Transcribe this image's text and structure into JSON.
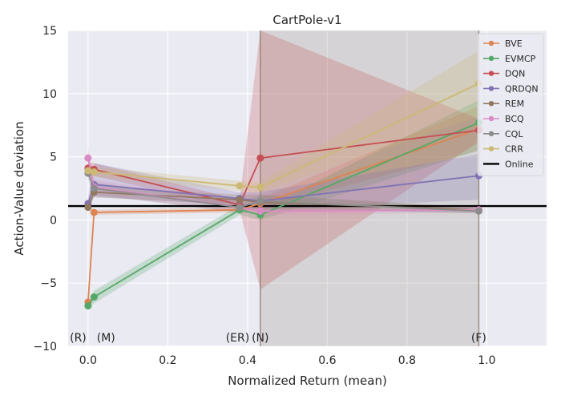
{
  "chart_data": {
    "type": "line",
    "title": "CartPole-v1",
    "xlabel": "Normalized Return (mean)",
    "ylabel": "Action-Value deviation",
    "xlim": [
      -0.05,
      1.15
    ],
    "ylim": [
      -10,
      15
    ],
    "xticks": [
      0.0,
      0.2,
      0.4,
      0.6,
      0.8,
      1.0
    ],
    "xtick_labels": [
      "0.0",
      "0.2",
      "0.4",
      "0.6",
      "0.8",
      "1.0"
    ],
    "yticks": [
      -10,
      -5,
      0,
      5,
      10,
      15
    ],
    "ytick_labels": [
      "−10",
      "−5",
      "0",
      "5",
      "10",
      "15"
    ],
    "grid": true,
    "legend_position": "top-right",
    "annotations": [
      {
        "text": "(R)",
        "x": -0.025
      },
      {
        "text": "(M)",
        "x": 0.045
      },
      {
        "text": "(ER)",
        "x": 0.375
      },
      {
        "text": "(N)",
        "x": 0.432
      },
      {
        "text": "(F)",
        "x": 0.98
      }
    ],
    "vlines": [
      0.432,
      0.98
    ],
    "shaded_span": [
      0.432,
      0.98
    ],
    "reference_line": {
      "name": "Online",
      "y": 1.1,
      "color": "#000000"
    },
    "series": [
      {
        "name": "BVE",
        "color": "#dd8452",
        "x": [
          0.0,
          0.015,
          0.38,
          0.432,
          0.98
        ],
        "y": [
          -6.5,
          0.6,
          0.8,
          1.3,
          7.2
        ],
        "lower": [
          -6.9,
          0.4,
          0.6,
          0.9,
          5.5
        ],
        "upper": [
          -6.1,
          0.8,
          1.0,
          1.7,
          9.0
        ]
      },
      {
        "name": "EVMCP",
        "color": "#55a868",
        "x": [
          0.0,
          0.015,
          0.38,
          0.432,
          0.98
        ],
        "y": [
          -6.8,
          -6.1,
          0.8,
          0.4,
          7.7
        ],
        "lower": [
          -7.1,
          -6.6,
          0.4,
          0.0,
          5.5
        ],
        "upper": [
          -6.5,
          -5.6,
          1.2,
          0.8,
          9.5
        ]
      },
      {
        "name": "DQN",
        "color": "#c44e52",
        "x": [
          0.0,
          0.015,
          0.38,
          0.432,
          0.98
        ],
        "y": [
          4.1,
          4.0,
          1.2,
          4.9,
          7.1
        ],
        "lower": [
          3.6,
          3.5,
          0.8,
          -5.5,
          6.2
        ],
        "upper": [
          4.6,
          4.5,
          1.6,
          15.0,
          8.0
        ]
      },
      {
        "name": "QRDQN",
        "color": "#8172b3",
        "x": [
          0.0,
          0.015,
          0.38,
          0.432,
          0.98
        ],
        "y": [
          1.3,
          2.8,
          1.7,
          1.5,
          3.5
        ],
        "lower": [
          0.8,
          1.8,
          1.2,
          0.8,
          1.6
        ],
        "upper": [
          1.8,
          4.5,
          2.2,
          2.2,
          5.2
        ]
      },
      {
        "name": "REM",
        "color": "#937860",
        "x": [
          0.0,
          0.015,
          0.38,
          0.432,
          0.98
        ],
        "y": [
          1.0,
          2.2,
          1.6,
          1.4,
          0.8
        ],
        "lower": [
          0.7,
          1.8,
          1.2,
          0.8,
          0.6
        ],
        "upper": [
          1.3,
          2.6,
          2.0,
          2.0,
          1.0
        ]
      },
      {
        "name": "BCQ",
        "color": "#da8bc3",
        "x": [
          0.0,
          0.015,
          0.38,
          0.432,
          0.98
        ],
        "y": [
          4.9,
          2.6,
          1.0,
          0.7,
          0.8
        ],
        "lower": [
          4.0,
          2.0,
          0.6,
          0.4,
          0.6
        ],
        "upper": [
          5.8,
          3.2,
          1.4,
          1.0,
          1.0
        ]
      },
      {
        "name": "CQL",
        "color": "#8c8c8c",
        "x": [
          0.0,
          0.015,
          0.38,
          0.432,
          0.98
        ],
        "y": [
          3.7,
          2.5,
          1.0,
          1.5,
          0.7
        ],
        "lower": [
          3.2,
          2.0,
          0.6,
          1.0,
          0.5
        ],
        "upper": [
          4.2,
          3.0,
          1.4,
          2.0,
          0.9
        ]
      },
      {
        "name": "CRR",
        "color": "#ccb974",
        "x": [
          0.0,
          0.015,
          0.38,
          0.432,
          0.98
        ],
        "y": [
          3.9,
          3.8,
          2.7,
          2.6,
          10.8
        ],
        "lower": [
          3.4,
          3.4,
          2.3,
          2.2,
          8.2
        ],
        "upper": [
          4.4,
          4.2,
          3.1,
          3.0,
          13.4
        ]
      }
    ]
  }
}
